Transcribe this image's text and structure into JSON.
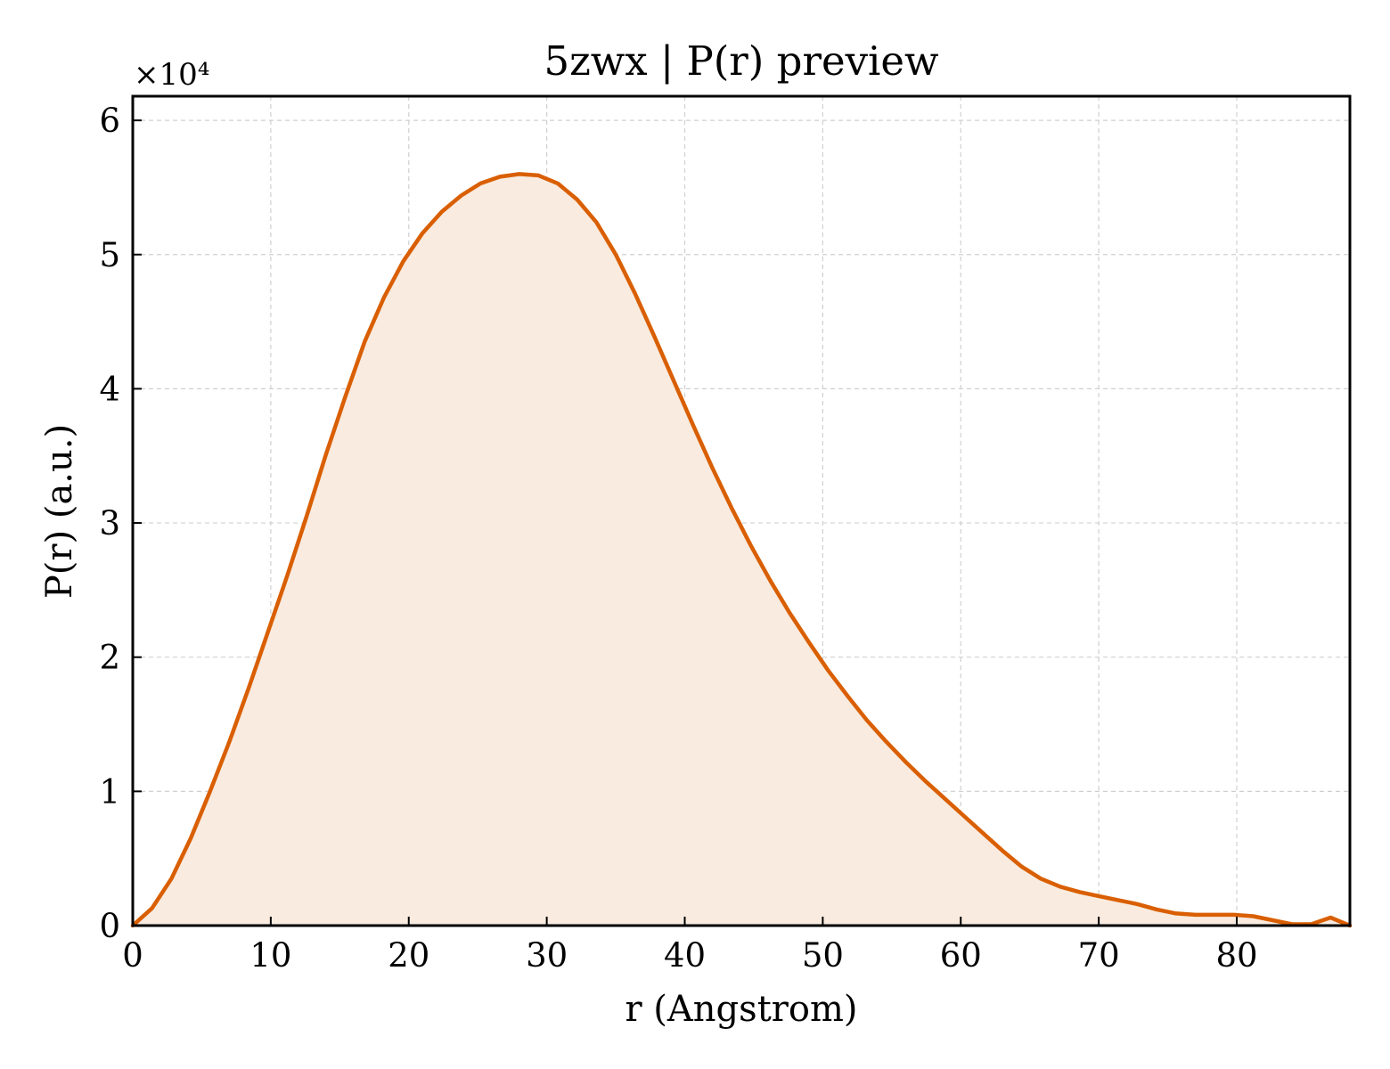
{
  "chart_data": {
    "type": "area",
    "title": "5zwx | P(r) preview",
    "xlabel": "r (Angstrom)",
    "ylabel": "P(r) (a.u.)",
    "y_multiplier_label": "×10⁴",
    "xlim": [
      0,
      88.2
    ],
    "ylim": [
      0,
      6.18
    ],
    "y_scale_factor": 10000,
    "xticks": [
      "0",
      "10",
      "20",
      "30",
      "40",
      "50",
      "60",
      "70",
      "80"
    ],
    "xtick_values": [
      0,
      10,
      20,
      30,
      40,
      50,
      60,
      70,
      80
    ],
    "yticks": [
      "0",
      "1",
      "2",
      "3",
      "4",
      "5",
      "6"
    ],
    "ytick_values": [
      0,
      1,
      2,
      3,
      4,
      5,
      6
    ],
    "grid": true,
    "line_color": "#D95F02",
    "fill_color": "#F9EBE0",
    "series": [
      {
        "x": [
          0,
          1.4,
          2.8,
          4.2,
          5.6,
          7.0,
          8.4,
          9.8,
          11.2,
          12.6,
          14.0,
          15.4,
          16.8,
          18.2,
          19.6,
          21.0,
          22.4,
          23.8,
          25.2,
          26.6,
          28.0,
          29.4,
          30.8,
          32.2,
          33.6,
          35.0,
          36.4,
          37.8,
          39.2,
          40.6,
          42.0,
          43.4,
          44.8,
          46.2,
          47.6,
          49.0,
          50.4,
          51.8,
          53.2,
          54.6,
          56.0,
          57.4,
          58.8,
          60.2,
          61.6,
          63.0,
          64.4,
          65.8,
          67.2,
          68.6,
          70.0,
          71.4,
          72.8,
          74.2,
          75.6,
          77.0,
          78.4,
          79.8,
          81.2,
          82.6,
          84.0,
          85.4,
          86.8,
          88.2
        ],
        "y": [
          0.0,
          0.13,
          0.35,
          0.65,
          1.0,
          1.37,
          1.77,
          2.19,
          2.61,
          3.05,
          3.51,
          3.94,
          4.35,
          4.68,
          4.95,
          5.16,
          5.32,
          5.44,
          5.53,
          5.58,
          5.6,
          5.59,
          5.53,
          5.41,
          5.24,
          5.0,
          4.71,
          4.39,
          4.06,
          3.73,
          3.41,
          3.11,
          2.83,
          2.57,
          2.33,
          2.11,
          1.9,
          1.71,
          1.53,
          1.37,
          1.22,
          1.08,
          0.95,
          0.82,
          0.69,
          0.56,
          0.44,
          0.35,
          0.29,
          0.25,
          0.22,
          0.19,
          0.16,
          0.12,
          0.09,
          0.08,
          0.08,
          0.08,
          0.07,
          0.04,
          0.01,
          0.01,
          0.06,
          0.0
        ]
      }
    ]
  }
}
